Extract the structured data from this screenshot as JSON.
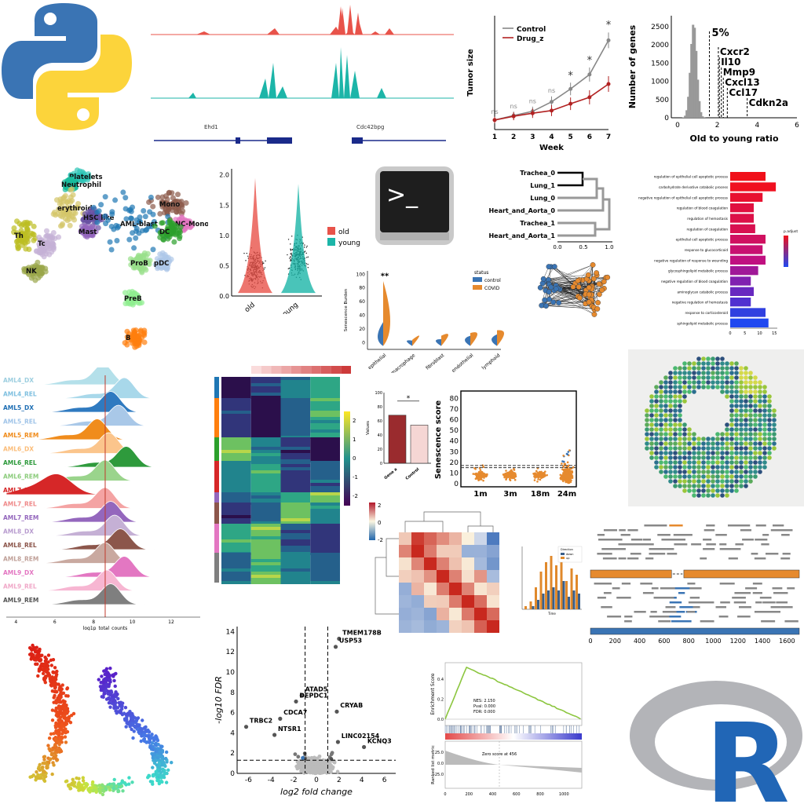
{
  "logos": {
    "python": "python-logo",
    "terminal_prompt": ">_",
    "r_letter": "R"
  },
  "colors": {
    "red": "#e8534a",
    "teal": "#1cb5a8",
    "orange": "#e68a2e",
    "blue": "#3a74b4",
    "grey": "#888888",
    "green": "#8cc63f"
  },
  "chart_data": [
    {
      "id": "coverage",
      "type": "area",
      "tracks": [
        "red",
        "teal"
      ],
      "genes": [
        "Ehd1",
        "Cdc42bpg"
      ]
    },
    {
      "id": "tumor",
      "type": "line",
      "xlabel": "Week",
      "ylabel": "Tumor size",
      "x": [
        1,
        2,
        3,
        4,
        5,
        6,
        7
      ],
      "ylim": [
        0,
        30
      ],
      "series": [
        {
          "name": "Control",
          "values": [
            2.5,
            3.7,
            4.8,
            7.3,
            10.7,
            14.5,
            23.5
          ]
        },
        {
          "name": "Drug_z",
          "values": [
            2.5,
            3.5,
            4.3,
            5.0,
            6.8,
            8.5,
            12.0
          ]
        }
      ],
      "annotations": [
        "ns",
        "ns",
        "ns",
        "ns",
        "*",
        "*",
        "*"
      ]
    },
    {
      "id": "ratio",
      "type": "bar",
      "xlabel": "Old to young ratio",
      "ylabel": "Number of genes",
      "yticks": [
        0,
        500,
        1000,
        1500,
        2000,
        2500
      ],
      "xticks": [
        0,
        2,
        4,
        6
      ],
      "threshold_label": "5%",
      "genes": [
        "Cxcr2",
        "Il10",
        "Mmp9",
        "Cxcl13",
        "Ccl17",
        "Cdkn2a"
      ]
    },
    {
      "id": "umap",
      "type": "scatter",
      "clusters": [
        "Platelets",
        "Neutrophil",
        "erythroid",
        "Mono",
        "NC-Mono",
        "HSC like",
        "AML-blast",
        "DC",
        "Mast",
        "Th",
        "Tc",
        "NK",
        "ProB",
        "pDC",
        "PreB",
        "B"
      ]
    },
    {
      "id": "violin",
      "type": "violin",
      "categories": [
        "old",
        "young"
      ],
      "legend": [
        "old",
        "young"
      ],
      "yticks": [
        0.0,
        0.5,
        1.0,
        1.5,
        2.0
      ]
    },
    {
      "id": "dendro",
      "type": "table",
      "leaves": [
        "Trachea_0",
        "Lung_1",
        "Lung_0",
        "Heart_and_Aorta_0",
        "Trachea_1",
        "Heart_and_Aorta_1"
      ],
      "xticks": [
        0.0,
        0.5,
        1.0
      ]
    },
    {
      "id": "go",
      "type": "bar",
      "categories": [
        "regulation of epithelial cell apoptotic process",
        "carbohydrate derivative catabolic process",
        "negative regulation of epithelial cell apoptotic process",
        "regulation of blood coagulation",
        "regulation of hemostasis",
        "regulation of coagulation",
        "epithelial cell apoptotic process",
        "response to glucocorticoid",
        "negative regulation of response to wounding",
        "glycosphingolipid metabolic process",
        "negative regulation of blood coagulation",
        "aminoglycan catabolic process",
        "negative regulation of hemostasis",
        "response to corticosteroid",
        "sphingolipid metabolic process"
      ],
      "values": [
        12,
        15.5,
        11,
        8,
        8,
        8.5,
        12,
        11,
        12,
        9.5,
        7,
        8,
        7,
        12,
        13
      ],
      "xticks": [
        0,
        5,
        10,
        15
      ],
      "legend_title": "p.adjust"
    },
    {
      "id": "senescence_violin",
      "type": "violin",
      "ylabel": "Senescence Burden",
      "categories": [
        "epithelial",
        "macrophage",
        "fibroblast",
        "endothelial",
        "lymphoid"
      ],
      "legend_title": "status",
      "legend": [
        "control",
        "COVID"
      ],
      "yticks": [
        0,
        20,
        40,
        60,
        80,
        100
      ],
      "annotation": "**"
    },
    {
      "id": "ridge",
      "type": "area",
      "xlabel": "log1p_total_counts",
      "xticks": [
        4,
        6,
        8,
        10,
        12
      ],
      "categories": [
        "AML4_DX",
        "AML4_REL",
        "AML5_DX",
        "AML5_REL",
        "AML5_REM",
        "AML6_DX",
        "AML6_REL",
        "AML6_REM",
        "AML7_DX",
        "AML7_REL",
        "AML7_REM",
        "AML8_DX",
        "AML8_REL",
        "AML8_REM",
        "AML9_DX",
        "AML9_REL",
        "AML9_REM"
      ],
      "peaks": [
        8.5,
        9.6,
        8.9,
        9.3,
        8.2,
        8.8,
        9.7,
        8.6,
        6.1,
        8.6,
        8.9,
        9.1,
        9.4,
        8.6,
        9.6,
        8.7,
        8.9
      ]
    },
    {
      "id": "heatmap",
      "type": "heatmap",
      "colorbar_ticks": [
        2,
        1,
        0,
        -1,
        -2
      ]
    },
    {
      "id": "bar_small",
      "type": "bar",
      "ylabel": "Values",
      "categories": [
        "Gene a",
        "Control"
      ],
      "values": [
        68,
        54
      ],
      "ylim": [
        0,
        100
      ],
      "yticks": [
        0,
        20,
        40,
        60,
        80,
        100
      ],
      "annotation": "*"
    },
    {
      "id": "sen_scatter",
      "type": "scatter",
      "ylabel": "Senescence score",
      "categories": [
        "1m",
        "3m",
        "18m",
        "24m"
      ],
      "yticks": [
        0,
        10,
        20,
        30,
        40,
        50,
        60,
        70,
        80
      ]
    },
    {
      "id": "spatial",
      "type": "scatter"
    },
    {
      "id": "corr",
      "type": "heatmap",
      "colorbar_ticks": [
        2,
        0,
        -2
      ]
    },
    {
      "id": "direction",
      "type": "bar",
      "legend_title": "Direction",
      "legend": [
        "down",
        "up"
      ],
      "xlabel": "Time"
    },
    {
      "id": "reads",
      "type": "table",
      "xticks": [
        0,
        200,
        400,
        600,
        800,
        1000,
        1200,
        1400,
        1600
      ]
    },
    {
      "id": "trajectory",
      "type": "scatter"
    },
    {
      "id": "volcano",
      "type": "scatter",
      "xlabel": "log2 fold change",
      "ylabel": "-log10 FDR",
      "xticks": [
        -6,
        -4,
        -2,
        0,
        2,
        4,
        6
      ],
      "yticks": [
        0,
        2,
        4,
        6,
        8,
        10,
        12,
        14
      ],
      "labels": [
        {
          "text": "TMEM178B",
          "x": 2.3,
          "y": 13.7
        },
        {
          "text": "USP53",
          "x": 2.0,
          "y": 12.9
        },
        {
          "text": "ATAD5",
          "x": -1.0,
          "y": 8.1
        },
        {
          "text": "DEPDC1",
          "x": -1.5,
          "y": 7.5
        },
        {
          "text": "CRYAB",
          "x": 2.1,
          "y": 6.5
        },
        {
          "text": "CDCA7",
          "x": -2.9,
          "y": 5.8
        },
        {
          "text": "TRBC2",
          "x": -5.9,
          "y": 5.0
        },
        {
          "text": "NTSR1",
          "x": -3.4,
          "y": 4.2
        },
        {
          "text": "LINC02154",
          "x": 2.2,
          "y": 3.5
        },
        {
          "text": "KCNQ3",
          "x": 4.5,
          "y": 3.0
        }
      ]
    },
    {
      "id": "gsea",
      "type": "line",
      "ylabel": "Enrichment Score",
      "ylabel2": "Ranked list metric",
      "stats": [
        "NES: 2.150",
        "Pval: 0.000",
        "FDR: 0.000"
      ],
      "zero_label": "Zero score at 456",
      "yticks": [
        0.0,
        0.2,
        0.4
      ],
      "yticks2": [
        25.0,
        0.0,
        -25.0
      ],
      "xticks": [
        0,
        200,
        400,
        600,
        800,
        1000
      ]
    }
  ]
}
